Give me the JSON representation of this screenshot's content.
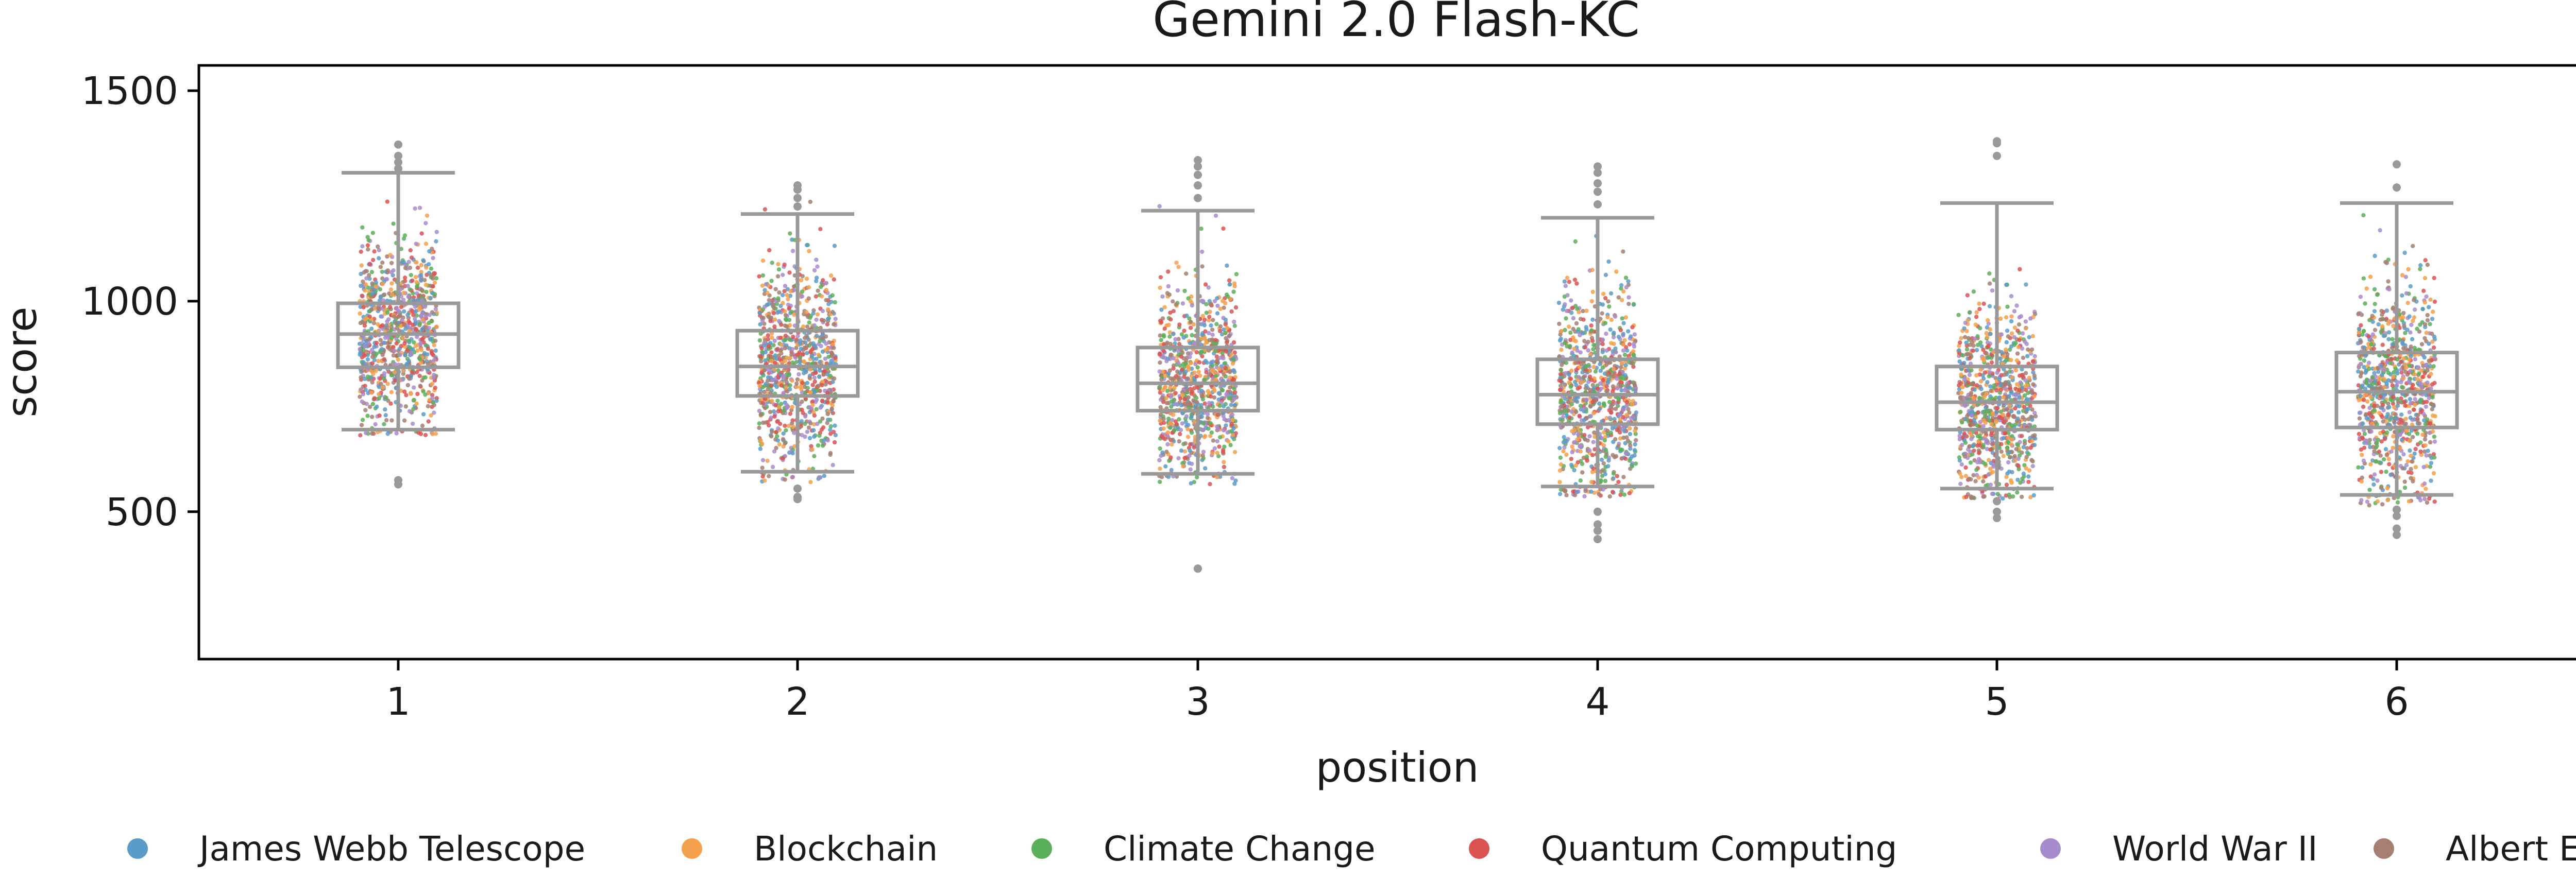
{
  "chart_data": {
    "type": "box",
    "title": "Gemini 2.0 Flash-KC",
    "xlabel": "position",
    "ylabel": "score",
    "categories": [
      "1",
      "2",
      "3",
      "4",
      "5",
      "6"
    ],
    "ylim": [
      150,
      1560
    ],
    "yticks": [
      500,
      1000,
      1500
    ],
    "grid": false,
    "legend_placement": "bottom",
    "box_color": "#999999",
    "boxes": [
      {
        "position": "1",
        "whisker_low": 695,
        "q1": 843,
        "median": 922,
        "q3": 995,
        "whisker_high": 1305,
        "outliers": [
          575,
          565,
          1345,
          1372,
          1330,
          1315
        ]
      },
      {
        "position": "2",
        "whisker_low": 595,
        "q1": 775,
        "median": 845,
        "q3": 930,
        "whisker_high": 1207,
        "outliers": [
          555,
          530,
          535,
          1225,
          1245,
          1265,
          1275
        ]
      },
      {
        "position": "3",
        "whisker_low": 590,
        "q1": 740,
        "median": 805,
        "q3": 890,
        "whisker_high": 1215,
        "outliers": [
          365,
          365,
          1245,
          1275,
          1300,
          1320,
          1335
        ]
      },
      {
        "position": "4",
        "whisker_low": 560,
        "q1": 708,
        "median": 778,
        "q3": 862,
        "whisker_high": 1198,
        "outliers": [
          500,
          470,
          455,
          435,
          1230,
          1260,
          1280,
          1305,
          1320
        ]
      },
      {
        "position": "5",
        "whisker_low": 555,
        "q1": 695,
        "median": 760,
        "q3": 845,
        "whisker_high": 1233,
        "outliers": [
          525,
          500,
          485,
          1345,
          1375,
          1380
        ]
      },
      {
        "position": "6",
        "whisker_low": 540,
        "q1": 700,
        "median": 785,
        "q3": 878,
        "whisker_high": 1233,
        "outliers": [
          505,
          490,
          460,
          445,
          1270,
          1325
        ]
      }
    ],
    "series": [
      {
        "name": "James Webb Telescope",
        "color": "#5b9bc8"
      },
      {
        "name": "Blockchain",
        "color": "#f5a04a"
      },
      {
        "name": "Climate Change",
        "color": "#5aaf5a"
      },
      {
        "name": "Quantum Computing",
        "color": "#d95353"
      },
      {
        "name": "World War II",
        "color": "#a88bcc"
      },
      {
        "name": "Albert Einstein",
        "color": "#a57f72"
      }
    ]
  }
}
